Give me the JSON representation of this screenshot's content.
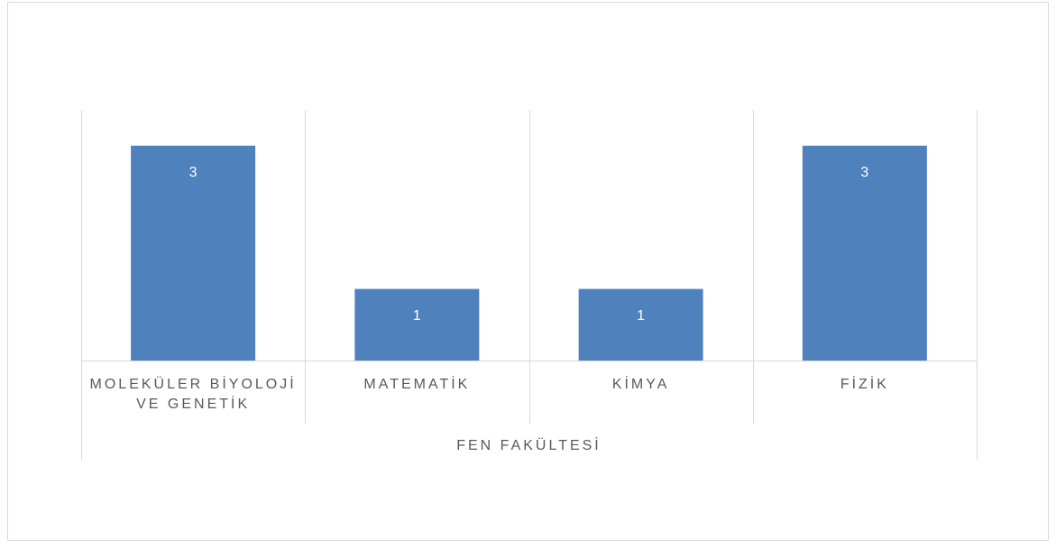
{
  "chart_data": {
    "type": "bar",
    "categories": [
      "MOLEKÜLER BİYOLOJİ VE GENETİK",
      "MATEMATİK",
      "KİMYA",
      "FİZİK"
    ],
    "values": [
      3,
      1,
      1,
      3
    ],
    "group_label": "FEN FAKÜLTESİ",
    "color": "#4f81bd",
    "ylim": [
      0,
      3.5
    ]
  }
}
